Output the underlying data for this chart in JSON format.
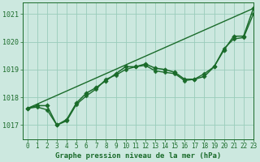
{
  "title": "Graphe pression niveau de la mer (hPa)",
  "background_color": "#cce8df",
  "grid_color": "#99ccbb",
  "line_color": "#1a6b2a",
  "xlim": [
    -0.5,
    23
  ],
  "ylim": [
    1016.5,
    1021.4
  ],
  "yticks": [
    1017,
    1018,
    1019,
    1020,
    1021
  ],
  "xticks": [
    0,
    1,
    2,
    3,
    4,
    5,
    6,
    7,
    8,
    9,
    10,
    11,
    12,
    13,
    14,
    15,
    16,
    17,
    18,
    19,
    20,
    21,
    22,
    23
  ],
  "series": [
    {
      "x": [
        0,
        23
      ],
      "y": [
        1017.6,
        1021.2
      ],
      "marker": null,
      "markersize": 0,
      "linewidth": 1.0
    },
    {
      "x": [
        0,
        1,
        2,
        3,
        4,
        5,
        6,
        7,
        8,
        9,
        10,
        11,
        12,
        13,
        14,
        15,
        16,
        17,
        18,
        19,
        20,
        21,
        22,
        23
      ],
      "y": [
        1017.6,
        1017.7,
        1017.7,
        1017.0,
        1017.2,
        1017.8,
        1018.15,
        1018.35,
        1018.6,
        1018.85,
        1019.1,
        1019.1,
        1019.2,
        1019.05,
        1019.0,
        1018.9,
        1018.65,
        1018.65,
        1018.75,
        1019.1,
        1019.7,
        1020.2,
        1020.2,
        1021.2
      ],
      "marker": "D",
      "markersize": 2.8,
      "linewidth": 1.1
    },
    {
      "x": [
        0,
        1,
        2,
        3,
        4,
        5,
        6,
        7,
        8,
        9,
        10,
        11,
        12,
        13,
        14,
        15,
        16,
        17,
        18,
        19,
        20,
        21,
        22,
        23
      ],
      "y": [
        1017.6,
        1017.65,
        1017.55,
        1017.0,
        1017.15,
        1017.75,
        1018.05,
        1018.3,
        1018.65,
        1018.8,
        1019.0,
        1019.1,
        1019.15,
        1018.95,
        1018.9,
        1018.85,
        1018.6,
        1018.65,
        1018.85,
        1019.1,
        1019.75,
        1020.1,
        1020.15,
        1021.0
      ],
      "marker": "D",
      "markersize": 2.5,
      "linewidth": 1.0
    }
  ],
  "xlabel_fontsize": 6.5,
  "tick_fontsize": 6.0,
  "tick_fontsize_x": 5.5
}
